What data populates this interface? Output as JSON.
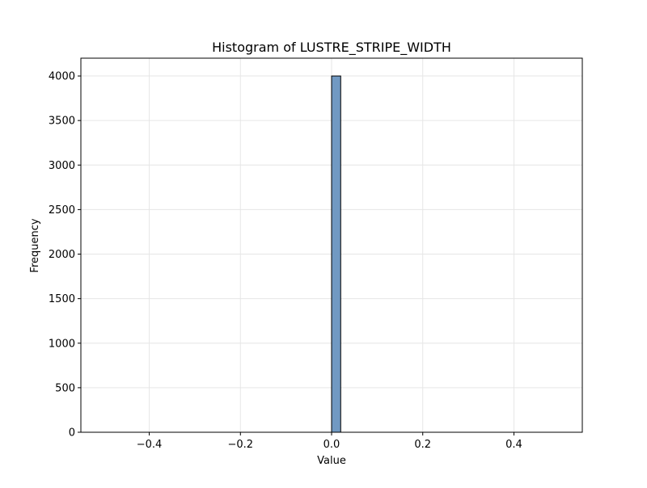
{
  "chart_data": {
    "type": "bar",
    "title": "Histogram of LUSTRE_STRIPE_WIDTH",
    "xlabel": "Value",
    "ylabel": "Frequency",
    "xlim": [
      -0.55,
      0.55
    ],
    "ylim": [
      0,
      4200
    ],
    "grid": true,
    "bins": [
      {
        "x0": 0.0,
        "x1": 0.02,
        "count": 4000
      }
    ],
    "xticks": [
      -0.4,
      -0.2,
      0.0,
      0.2,
      0.4
    ],
    "xtick_labels": [
      "−0.4",
      "−0.2",
      "0.0",
      "0.2",
      "0.4"
    ],
    "yticks": [
      0,
      500,
      1000,
      1500,
      2000,
      2500,
      3000,
      3500,
      4000
    ],
    "ytick_labels": [
      "0",
      "500",
      "1000",
      "1500",
      "2000",
      "2500",
      "3000",
      "3500",
      "4000"
    ],
    "bar_color": "#7199c2",
    "bar_edge_color": "#000000",
    "grid_color": "#e6e6e6"
  }
}
